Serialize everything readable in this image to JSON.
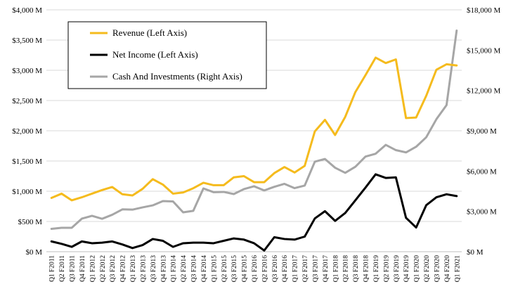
{
  "chart_data": {
    "type": "line",
    "title": "",
    "xlabel": "",
    "ylabel_left": "",
    "ylabel_right": "",
    "ylim_left": [
      0,
      4000
    ],
    "ylim_right": [
      0,
      18000
    ],
    "yticks_left": [
      "$0 M",
      "$500 M",
      "$1,000 M",
      "$1,500 M",
      "$2,000 M",
      "$2,500 M",
      "$3,000 M",
      "$3,500 M",
      "$4,000 M"
    ],
    "yticks_left_values": [
      0,
      500,
      1000,
      1500,
      2000,
      2500,
      3000,
      3500,
      4000
    ],
    "yticks_right": [
      "$0 M",
      "$3,000 M",
      "$6,000 M",
      "$9,000 M",
      "$12,000 M",
      "$15,000 M",
      "$18,000 M"
    ],
    "yticks_right_values": [
      0,
      3000,
      6000,
      9000,
      12000,
      15000,
      18000
    ],
    "grid": true,
    "legend_position": "top-left",
    "categories": [
      "Q1 F2011",
      "Q2 F2011",
      "Q3 F2011",
      "Q4 F2011",
      "Q1 F2012",
      "Q2 F2012",
      "Q3 F2012",
      "Q4 F2012",
      "Q1 F2013",
      "Q2 F2013",
      "Q3 F2013",
      "Q4 F2013",
      "Q1 F2014",
      "Q2 F2014",
      "Q3 F2014",
      "Q4 F2014",
      "Q1 F2015",
      "Q2 F2015",
      "Q3 F2015",
      "Q4 F2015",
      "Q1 F2016",
      "Q2 F2016",
      "Q3 F2016",
      "Q4 F2016",
      "Q1 F2017",
      "Q2 F2017",
      "Q3 F2017",
      "Q4 F2017",
      "Q1 F2018",
      "Q2 F2018",
      "Q3 F2018",
      "Q4 F2018",
      "Q1 F2019",
      "Q2 F2019",
      "Q3 F2019",
      "Q4 F2019",
      "Q1 F2020",
      "Q2 F2020",
      "Q3 F2020",
      "Q4 F2020",
      "Q1 F2021"
    ],
    "series": [
      {
        "name": "Revenue (Left Axis)",
        "axis": "left",
        "color": "#F5BB1D",
        "values": [
          890,
          960,
          850,
          900,
          960,
          1020,
          1070,
          950,
          930,
          1040,
          1200,
          1110,
          960,
          980,
          1050,
          1140,
          1100,
          1100,
          1230,
          1250,
          1150,
          1150,
          1300,
          1400,
          1310,
          1420,
          1990,
          2180,
          1930,
          2230,
          2640,
          2920,
          3210,
          3120,
          3180,
          2210,
          2220,
          2580,
          3010,
          3100,
          3080
        ]
      },
      {
        "name": "Net Income (Left Axis)",
        "axis": "left",
        "color": "#000000",
        "values": [
          170,
          130,
          80,
          170,
          140,
          150,
          170,
          120,
          60,
          110,
          210,
          180,
          80,
          140,
          150,
          150,
          140,
          180,
          220,
          200,
          140,
          20,
          240,
          210,
          200,
          250,
          550,
          670,
          510,
          640,
          850,
          1060,
          1280,
          1220,
          1230,
          560,
          400,
          770,
          900,
          950,
          920
        ]
      },
      {
        "name": "Cash And Investments (Right Axis)",
        "axis": "right",
        "color": "#A6A6A6",
        "values": [
          1700,
          1780,
          1780,
          2460,
          2670,
          2450,
          2750,
          3150,
          3130,
          3300,
          3450,
          3770,
          3740,
          2930,
          3040,
          4710,
          4430,
          4450,
          4290,
          4660,
          4870,
          4560,
          4830,
          5050,
          4730,
          4920,
          6700,
          6900,
          6250,
          5870,
          6320,
          7080,
          7290,
          7950,
          7560,
          7390,
          7810,
          8520,
          9860,
          10910,
          16460
        ]
      }
    ]
  }
}
